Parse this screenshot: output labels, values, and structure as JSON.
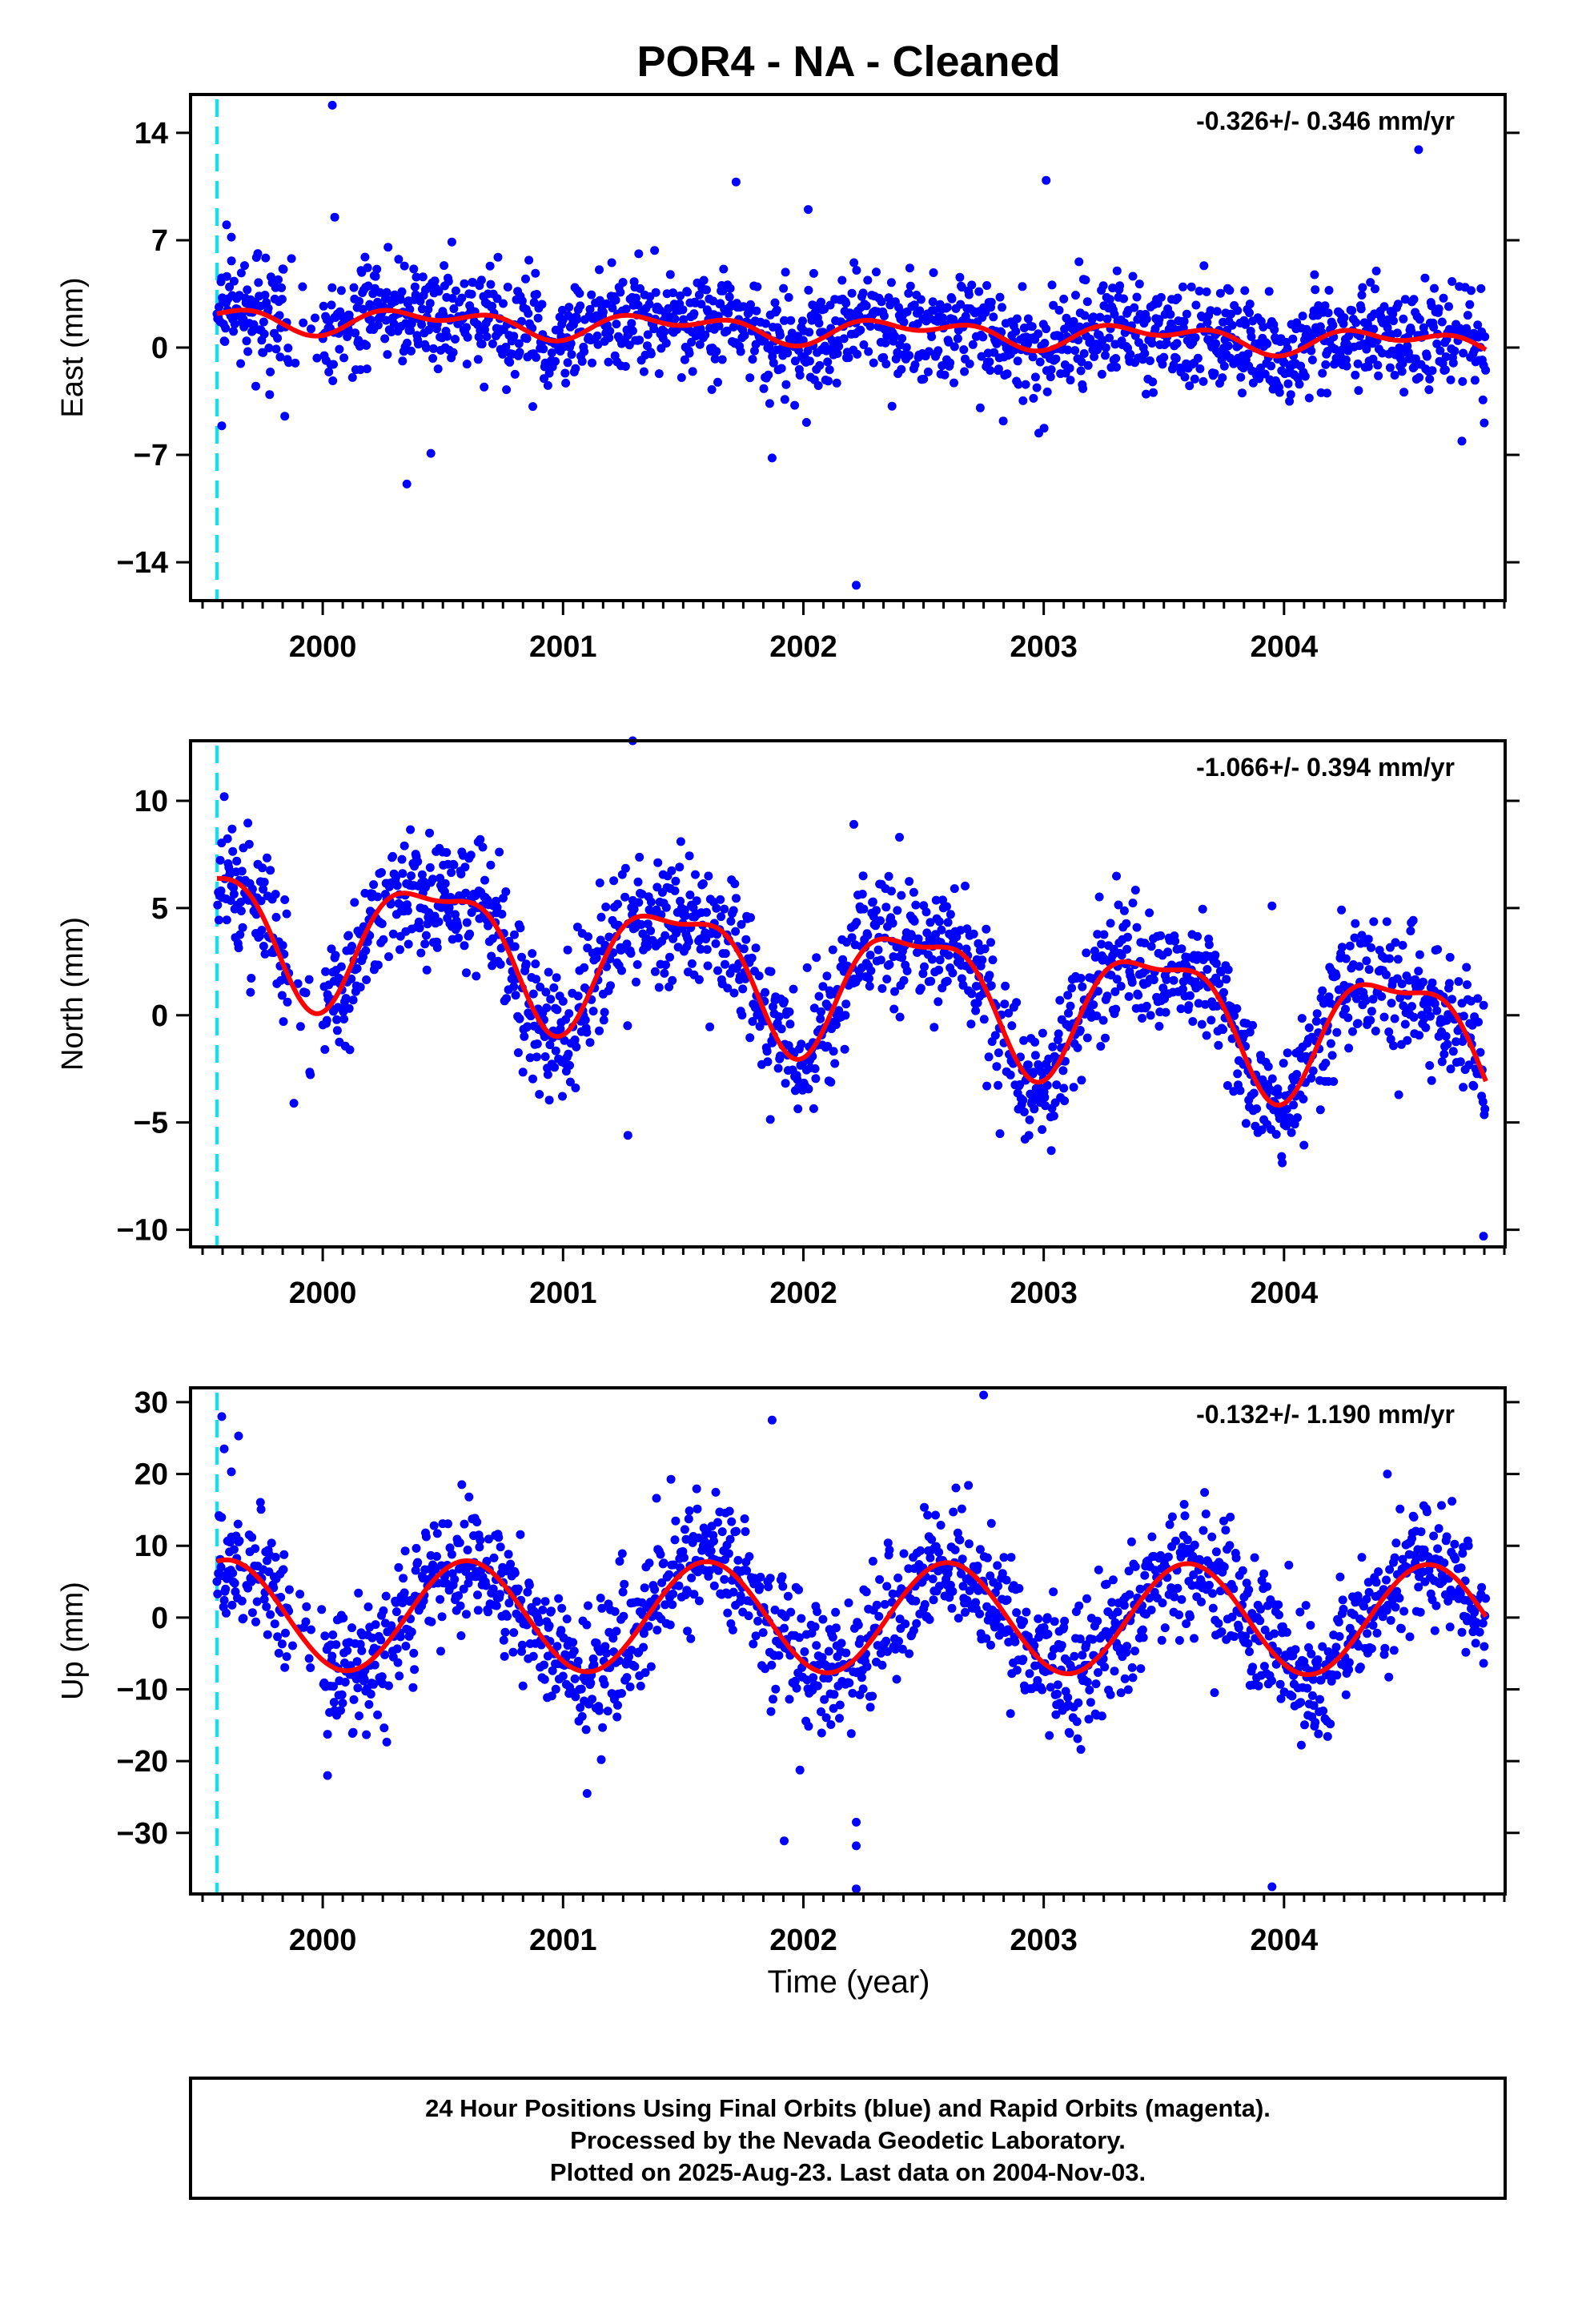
{
  "title": "POR4  - NA - Cleaned",
  "footer": {
    "line1": "24 Hour Positions Using Final Orbits (blue) and Rapid Orbits (magenta).",
    "line2": "Processed by the Nevada Geodetic Laboratory.",
    "line3": "Plotted on 2025-Aug-23. Last data on 2004-Nov-03."
  },
  "colors": {
    "final_orbits": "#0000ff",
    "rapid_orbits": "#ff00ff",
    "model_fit": "#ff0000",
    "equipment_change": "#00e5ff",
    "frame": "#000000"
  },
  "chart_data": [
    {
      "type": "scatter",
      "panel": "east",
      "ylabel": "East (mm)",
      "xlabel": "",
      "rate_label": "-0.326+/- 0.346 mm/yr",
      "xlim": [
        1999.45,
        2004.92
      ],
      "ylim": [
        -16.5,
        16.5
      ],
      "yticks": [
        -14,
        -7,
        0,
        7,
        14
      ],
      "ytick_labels": [
        "−14",
        "−7",
        "0",
        "7",
        "14"
      ],
      "xticks": [
        2000,
        2001,
        2002,
        2003,
        2004
      ],
      "xtick_labels": [
        "2000",
        "2001",
        "2002",
        "2003",
        "2004"
      ],
      "vline_x": 1999.56,
      "data_start": 1999.56,
      "data_end": 2004.84,
      "model": {
        "offset": 1.12,
        "trend": -0.326,
        "annual": 0.6,
        "annual_phase": 0.2,
        "semi": 0.5,
        "semi_phase": 0.1
      },
      "scatter_sigma": 1.7,
      "outliers": [
        [
          1999.6,
          8.0
        ],
        [
          1999.62,
          7.2
        ],
        [
          2000.04,
          15.8
        ],
        [
          2000.05,
          8.5
        ],
        [
          2001.72,
          10.8
        ],
        [
          2002.02,
          9.0
        ],
        [
          2002.22,
          -15.5
        ],
        [
          2003.01,
          10.9
        ],
        [
          2004.56,
          12.9
        ],
        [
          2000.35,
          -8.9
        ],
        [
          2000.45,
          -6.9
        ],
        [
          1999.87,
          5.8
        ],
        [
          2001.87,
          -7.2
        ],
        [
          1999.58,
          -5.1
        ],
        [
          2004.74,
          -6.1
        ]
      ]
    },
    {
      "type": "scatter",
      "panel": "north",
      "ylabel": "North (mm)",
      "xlabel": "",
      "rate_label": "-1.066+/- 0.394 mm/yr",
      "xlim": [
        1999.45,
        2004.92
      ],
      "ylim": [
        -10.8,
        12.8
      ],
      "yticks": [
        -10,
        -5,
        0,
        5,
        10
      ],
      "ytick_labels": [
        "−10",
        "−5",
        "0",
        "5",
        "10"
      ],
      "xticks": [
        2000,
        2001,
        2002,
        2003,
        2004
      ],
      "xtick_labels": [
        "2000",
        "2001",
        "2002",
        "2003",
        "2004"
      ],
      "vline_x": 1999.56,
      "data_start": 1999.56,
      "data_end": 2004.84,
      "model": {
        "offset": 1.6,
        "trend": -1.066,
        "annual": 2.9,
        "annual_phase": 0.22,
        "semi": 1.0,
        "semi_phase": 0.1
      },
      "scatter_sigma": 1.5,
      "outliers": [
        [
          2001.29,
          12.8
        ],
        [
          2002.21,
          8.9
        ],
        [
          2003.95,
          5.1
        ],
        [
          2004.83,
          -10.3
        ],
        [
          2001.27,
          -5.6
        ],
        [
          1999.88,
          -4.1
        ],
        [
          2002.4,
          8.3
        ]
      ]
    },
    {
      "type": "scatter",
      "panel": "up",
      "ylabel": "Up (mm)",
      "xlabel": "Time (year)",
      "rate_label": "-0.132+/- 1.190 mm/yr",
      "xlim": [
        1999.45,
        2004.92
      ],
      "ylim": [
        -38.5,
        32.0
      ],
      "yticks": [
        -30,
        -20,
        -10,
        0,
        10,
        20,
        30
      ],
      "ytick_labels": [
        "−30",
        "−20",
        "−10",
        "0",
        "10",
        "20",
        "30"
      ],
      "xticks": [
        2000,
        2001,
        2002,
        2003,
        2004
      ],
      "xtick_labels": [
        "2000",
        "2001",
        "2002",
        "2003",
        "2004"
      ],
      "vline_x": 1999.56,
      "data_start": 1999.56,
      "data_end": 2004.84,
      "model": {
        "offset": 0.0,
        "trend": -0.132,
        "annual": 7.7,
        "annual_phase": 0.35,
        "semi": 0.0,
        "semi_phase": 0.0
      },
      "scatter_sigma": 4.5,
      "outliers": [
        [
          1999.58,
          28.0
        ],
        [
          1999.59,
          23.5
        ],
        [
          1999.65,
          25.3
        ],
        [
          2001.87,
          27.5
        ],
        [
          2002.75,
          31.0
        ],
        [
          1999.62,
          20.3
        ],
        [
          2002.22,
          -28.5
        ],
        [
          2002.22,
          -31.8
        ],
        [
          2002.22,
          -37.8
        ],
        [
          2003.95,
          -37.5
        ],
        [
          2001.92,
          -31.1
        ],
        [
          2000.02,
          -22.0
        ],
        [
          2001.1,
          -24.5
        ],
        [
          2004.43,
          20.0
        ]
      ]
    }
  ]
}
